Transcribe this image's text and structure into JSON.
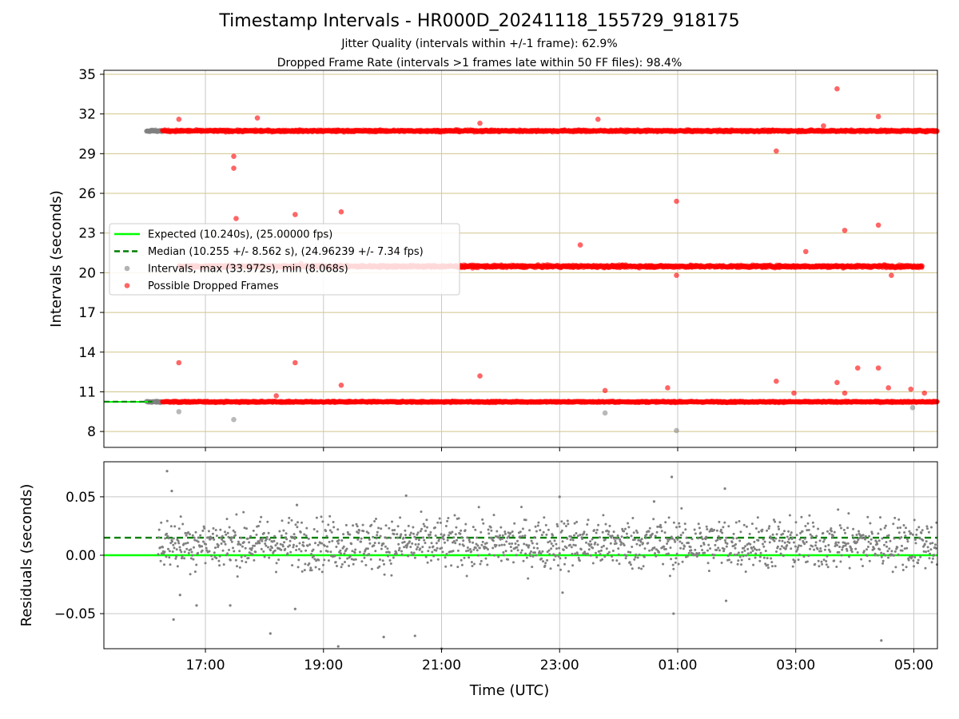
{
  "header": {
    "title": "Timestamp Intervals - HR000D_20241118_155729_918175",
    "subtitle_1": "Jitter Quality (intervals within +/-1 frame): 62.9%",
    "subtitle_2": "Dropped Frame Rate (intervals >1 frames late within 50 FF files): 98.4%"
  },
  "chart_data": [
    {
      "type": "scatter",
      "title": "Timestamp Intervals - HR000D_20241118_155729_918175",
      "ylabel": "Intervals (seconds)",
      "xlabel": "",
      "x_is_time_hours": true,
      "x_range_hours": [
        15.28,
        29.4
      ],
      "ylim": [
        6.8,
        35.3
      ],
      "yticks": [
        8,
        11,
        14,
        17,
        20,
        23,
        26,
        29,
        32,
        35
      ],
      "ytick_labels": [
        "8",
        "11",
        "14",
        "17",
        "20",
        "23",
        "26",
        "29",
        "32",
        "35"
      ],
      "grid": true,
      "grid_colors": {
        "horizontal": "#d1c48a",
        "vertical": "#c8c8c8"
      },
      "legend": {
        "placement": "center-left",
        "entries": [
          {
            "label": "Expected (10.240s), (25.00000 fps)",
            "marker": "line",
            "color": "#00ff00"
          },
          {
            "label": "Median (10.255 +/- 8.562 s), (24.96239 +/- 7.34 fps)",
            "marker": "dashed-line",
            "color": "#007f00"
          },
          {
            "label": "Intervals, max (33.972s), min (8.068s)",
            "marker": "dot",
            "color": "#808080"
          },
          {
            "label": "Possible Dropped Frames",
            "marker": "dot",
            "color": "#ff0000"
          }
        ]
      },
      "reference_lines": [
        {
          "name": "Expected",
          "y": 10.24,
          "color": "#00ff00",
          "style": "solid"
        },
        {
          "name": "Median",
          "y": 10.255,
          "color": "#007f00",
          "style": "dashed"
        }
      ],
      "bands": [
        {
          "name": "Intervals ~10.2s",
          "y": 10.24,
          "x_start": 16.0,
          "x_end": 29.4,
          "grey_until": 16.27,
          "jitter": 0.06
        },
        {
          "name": "Intervals ~20.5s",
          "y": 20.48,
          "x_start": 16.55,
          "x_end": 29.15,
          "jitter": 0.1
        },
        {
          "name": "Intervals ~30.7s",
          "y": 30.72,
          "x_start": 16.0,
          "x_end": 29.4,
          "grey_until": 16.27,
          "jitter": 0.08
        }
      ],
      "outliers_red": [
        [
          16.55,
          31.6
        ],
        [
          16.55,
          13.2
        ],
        [
          17.48,
          28.8
        ],
        [
          17.48,
          27.9
        ],
        [
          17.52,
          24.1
        ],
        [
          17.88,
          31.7
        ],
        [
          18.52,
          24.4
        ],
        [
          18.52,
          13.2
        ],
        [
          19.3,
          24.6
        ],
        [
          19.3,
          11.5
        ],
        [
          18.62,
          20.7
        ],
        [
          18.2,
          10.7
        ],
        [
          21.65,
          31.3
        ],
        [
          21.65,
          12.2
        ],
        [
          23.35,
          22.1
        ],
        [
          23.65,
          31.6
        ],
        [
          23.77,
          11.1
        ],
        [
          24.98,
          25.4
        ],
        [
          24.98,
          19.8
        ],
        [
          24.83,
          11.3
        ],
        [
          26.67,
          29.2
        ],
        [
          26.67,
          11.8
        ],
        [
          26.97,
          10.9
        ],
        [
          27.17,
          21.6
        ],
        [
          27.47,
          31.1
        ],
        [
          27.7,
          33.9
        ],
        [
          27.83,
          23.2
        ],
        [
          27.7,
          11.7
        ],
        [
          27.83,
          10.9
        ],
        [
          28.05,
          12.8
        ],
        [
          28.4,
          31.8
        ],
        [
          28.4,
          23.6
        ],
        [
          28.4,
          12.8
        ],
        [
          28.57,
          11.3
        ],
        [
          28.95,
          11.2
        ],
        [
          29.18,
          10.9
        ],
        [
          28.5,
          20.6
        ],
        [
          28.62,
          19.8
        ]
      ],
      "outliers_grey": [
        [
          16.55,
          9.5
        ],
        [
          17.48,
          8.9
        ],
        [
          23.77,
          9.4
        ],
        [
          24.98,
          8.07
        ],
        [
          28.98,
          9.8
        ]
      ]
    },
    {
      "type": "scatter",
      "xlabel": "Time (UTC)",
      "ylabel": "Residuals (seconds)",
      "x_is_time_hours": true,
      "x_range_hours": [
        15.28,
        29.4
      ],
      "ylim": [
        -0.08,
        0.08
      ],
      "yticks": [
        -0.05,
        0.0,
        0.05
      ],
      "ytick_labels": [
        "−0.05",
        "0.00",
        "0.05"
      ],
      "xticks_hours": [
        17,
        19,
        21,
        23,
        25,
        27,
        29
      ],
      "xtick_labels": [
        "17:00",
        "19:00",
        "21:00",
        "23:00",
        "01:00",
        "03:00",
        "05:00"
      ],
      "grid": true,
      "reference_lines": [
        {
          "name": "Expected",
          "y": 0.0,
          "color": "#00ff00",
          "style": "solid"
        },
        {
          "name": "Median",
          "y": 0.015,
          "color": "#007f00",
          "style": "dashed"
        }
      ],
      "residuals": {
        "x_start": 16.0,
        "x_end": 29.4,
        "center": 0.01,
        "spread": 0.011,
        "color": "#808080",
        "outliers": [
          [
            16.35,
            0.072
          ],
          [
            16.43,
            0.055
          ],
          [
            16.46,
            -0.055
          ],
          [
            16.57,
            -0.034
          ],
          [
            16.85,
            -0.043
          ],
          [
            17.42,
            -0.043
          ],
          [
            18.1,
            -0.067
          ],
          [
            18.52,
            -0.046
          ],
          [
            18.55,
            0.043
          ],
          [
            19.25,
            -0.078
          ],
          [
            20.02,
            -0.07
          ],
          [
            20.4,
            0.051
          ],
          [
            20.55,
            -0.069
          ],
          [
            21.0,
            -0.08
          ],
          [
            23.0,
            0.05
          ],
          [
            23.05,
            -0.032
          ],
          [
            24.6,
            0.046
          ],
          [
            24.9,
            0.067
          ],
          [
            24.93,
            -0.05
          ],
          [
            25.8,
            0.057
          ],
          [
            25.82,
            -0.039
          ],
          [
            28.45,
            -0.073
          ]
        ]
      }
    }
  ]
}
